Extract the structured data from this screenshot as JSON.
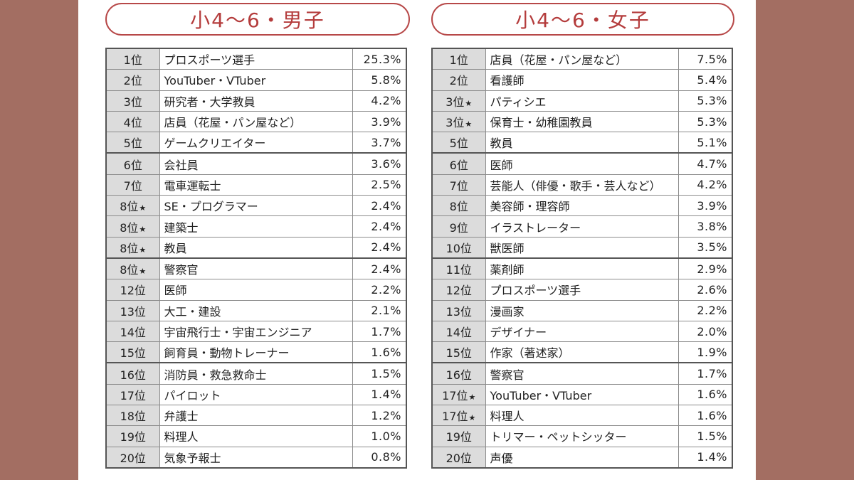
{
  "boys": {
    "title": "小4〜6・男子",
    "rows": [
      {
        "rank": "1位",
        "tie": false,
        "name": "プロスポーツ選手",
        "pct": "25.3%"
      },
      {
        "rank": "2位",
        "tie": false,
        "name": "YouTuber・VTuber",
        "pct": "5.8%"
      },
      {
        "rank": "3位",
        "tie": false,
        "name": "研究者・大学教員",
        "pct": "4.2%"
      },
      {
        "rank": "4位",
        "tie": false,
        "name": "店員（花屋・パン屋など）",
        "pct": "3.9%"
      },
      {
        "rank": "5位",
        "tie": false,
        "name": "ゲームクリエイター",
        "pct": "3.7%"
      },
      {
        "rank": "6位",
        "tie": false,
        "name": "会社員",
        "pct": "3.6%"
      },
      {
        "rank": "7位",
        "tie": false,
        "name": "電車運転士",
        "pct": "2.5%"
      },
      {
        "rank": "8位",
        "tie": true,
        "name": "SE・プログラマー",
        "pct": "2.4%"
      },
      {
        "rank": "8位",
        "tie": true,
        "name": "建築士",
        "pct": "2.4%"
      },
      {
        "rank": "8位",
        "tie": true,
        "name": "教員",
        "pct": "2.4%"
      },
      {
        "rank": "8位",
        "tie": true,
        "name": "警察官",
        "pct": "2.4%"
      },
      {
        "rank": "12位",
        "tie": false,
        "name": "医師",
        "pct": "2.2%"
      },
      {
        "rank": "13位",
        "tie": false,
        "name": "大工・建設",
        "pct": "2.1%"
      },
      {
        "rank": "14位",
        "tie": false,
        "name": "宇宙飛行士・宇宙エンジニア",
        "pct": "1.7%"
      },
      {
        "rank": "15位",
        "tie": false,
        "name": "飼育員・動物トレーナー",
        "pct": "1.6%"
      },
      {
        "rank": "16位",
        "tie": false,
        "name": "消防員・救急救命士",
        "pct": "1.5%"
      },
      {
        "rank": "17位",
        "tie": false,
        "name": "パイロット",
        "pct": "1.4%"
      },
      {
        "rank": "18位",
        "tie": false,
        "name": "弁護士",
        "pct": "1.2%"
      },
      {
        "rank": "19位",
        "tie": false,
        "name": "料理人",
        "pct": "1.0%"
      },
      {
        "rank": "20位",
        "tie": false,
        "name": "気象予報士",
        "pct": "0.8%"
      }
    ]
  },
  "girls": {
    "title": "小4〜6・女子",
    "rows": [
      {
        "rank": "1位",
        "tie": false,
        "name": "店員（花屋・パン屋など）",
        "pct": "7.5%"
      },
      {
        "rank": "2位",
        "tie": false,
        "name": "看護師",
        "pct": "5.4%"
      },
      {
        "rank": "3位",
        "tie": true,
        "name": "パティシエ",
        "pct": "5.3%"
      },
      {
        "rank": "3位",
        "tie": true,
        "name": "保育士・幼稚園教員",
        "pct": "5.3%"
      },
      {
        "rank": "5位",
        "tie": false,
        "name": "教員",
        "pct": "5.1%"
      },
      {
        "rank": "6位",
        "tie": false,
        "name": "医師",
        "pct": "4.7%"
      },
      {
        "rank": "7位",
        "tie": false,
        "name": "芸能人（俳優・歌手・芸人など）",
        "pct": "4.2%"
      },
      {
        "rank": "8位",
        "tie": false,
        "name": "美容師・理容師",
        "pct": "3.9%"
      },
      {
        "rank": "9位",
        "tie": false,
        "name": "イラストレーター",
        "pct": "3.8%"
      },
      {
        "rank": "10位",
        "tie": false,
        "name": "獣医師",
        "pct": "3.5%"
      },
      {
        "rank": "11位",
        "tie": false,
        "name": "薬剤師",
        "pct": "2.9%"
      },
      {
        "rank": "12位",
        "tie": false,
        "name": "プロスポーツ選手",
        "pct": "2.6%"
      },
      {
        "rank": "13位",
        "tie": false,
        "name": "漫画家",
        "pct": "2.2%"
      },
      {
        "rank": "14位",
        "tie": false,
        "name": "デザイナー",
        "pct": "2.0%"
      },
      {
        "rank": "15位",
        "tie": false,
        "name": "作家（著述家）",
        "pct": "1.9%"
      },
      {
        "rank": "16位",
        "tie": false,
        "name": "警察官",
        "pct": "1.7%"
      },
      {
        "rank": "17位",
        "tie": true,
        "name": "YouTuber・VTuber",
        "pct": "1.6%"
      },
      {
        "rank": "17位",
        "tie": true,
        "name": "料理人",
        "pct": "1.6%"
      },
      {
        "rank": "19位",
        "tie": false,
        "name": "トリマー・ペットシッター",
        "pct": "1.5%"
      },
      {
        "rank": "20位",
        "tie": false,
        "name": "声優",
        "pct": "1.4%"
      }
    ]
  },
  "tie_mark": "★",
  "colors": {
    "background": "#a36e62",
    "title_red": "#b43c3c",
    "rank_cell": "#dcdcdc"
  }
}
